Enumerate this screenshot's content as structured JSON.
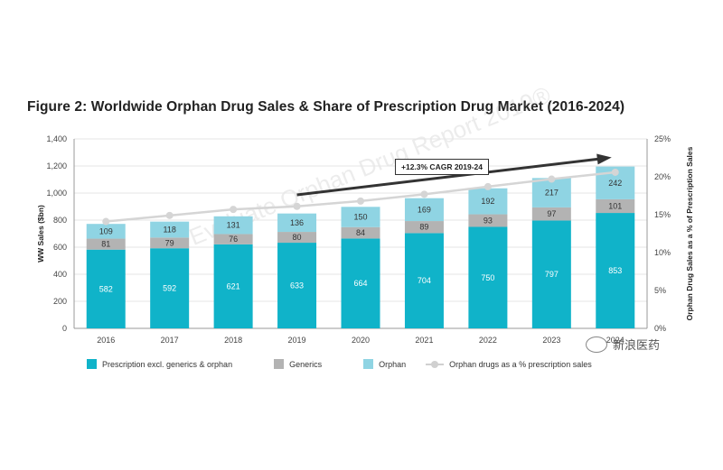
{
  "title": "Figure 2: Worldwide Orphan Drug Sales & Share of Prescription Drug Market (2016-2024)",
  "callout": "+12.3% CAGR 2019-24",
  "watermark_text": "Evaluate Orphan Drug Report 2019®",
  "brand_watermark": "新浪医药",
  "colors": {
    "prescription": "#10b3c9",
    "generics": "#b3b3b3",
    "orphan": "#8fd4e3",
    "share_line": "#d5d5d5",
    "arrow": "#333333"
  },
  "chart_data": {
    "type": "bar",
    "stacked": true,
    "categories": [
      "2016",
      "2017",
      "2018",
      "2019",
      "2020",
      "2021",
      "2022",
      "2023",
      "2024"
    ],
    "series": [
      {
        "name": "Prescription excl. generics & orphan",
        "values": [
          582,
          592,
          621,
          633,
          664,
          704,
          750,
          797,
          853
        ]
      },
      {
        "name": "Generics",
        "values": [
          81,
          79,
          76,
          80,
          84,
          89,
          93,
          97,
          101
        ]
      },
      {
        "name": "Orphan",
        "values": [
          109,
          118,
          131,
          136,
          150,
          169,
          192,
          217,
          242
        ]
      }
    ],
    "line_series": {
      "name": "Orphan drugs as a % prescription sales",
      "axis": "right",
      "values": [
        14.1,
        14.9,
        15.7,
        16.1,
        16.8,
        17.7,
        18.7,
        19.7,
        20.6
      ]
    },
    "ylabel": "WW Sales ($bn)",
    "ylabel_right": "Orphan Drug Sales as a % of Prescription Sales",
    "ylim": [
      0,
      1400
    ],
    "y_ticks": [
      "0",
      "200",
      "400",
      "600",
      "800",
      "1,000",
      "1,200",
      "1,400"
    ],
    "ylim_right": [
      0,
      25
    ],
    "y_ticks_right": [
      "0%",
      "5%",
      "10%",
      "15%",
      "20%",
      "25%"
    ],
    "grid": true,
    "legend_position": "bottom"
  }
}
